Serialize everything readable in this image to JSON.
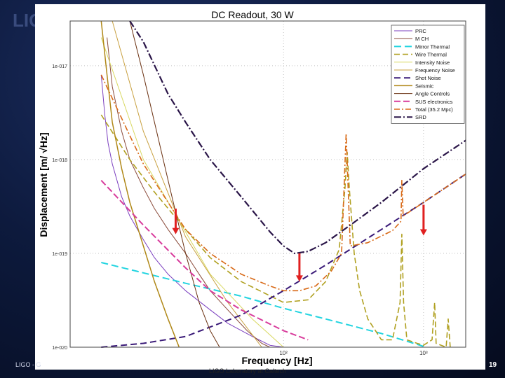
{
  "slide": {
    "footer_left": "LIGO - G",
    "footer_center": "LIGO Laboratory at Caltech",
    "page_number": "19",
    "bg_logo": "LIG"
  },
  "chart_data": {
    "type": "line",
    "title": "DC Readout, 30 W",
    "xlabel": "Frequency [Hz]",
    "ylabel": "Displacement [m/ √Hz]",
    "x_scale": "log",
    "y_scale": "log",
    "xlim": [
      3,
      2000
    ],
    "ylim": [
      1e-20,
      3e-17
    ],
    "grid": true,
    "legend_position": "top-right",
    "x_ticks": [
      {
        "value": 100,
        "label": "10²"
      },
      {
        "value": 1000,
        "label": "10³"
      }
    ],
    "y_ticks": [
      {
        "value": 1e-17,
        "label": "1e-017"
      },
      {
        "value": 1e-18,
        "label": "1e-018"
      },
      {
        "value": 1e-19,
        "label": "1e-019"
      },
      {
        "value": 1e-20,
        "label": "1e-020"
      }
    ],
    "series": [
      {
        "name": "PRC",
        "color": "#7b3fbf",
        "dash": "",
        "width": 1,
        "points": [
          [
            5,
            8e-18
          ],
          [
            5.3,
            3e-18
          ],
          [
            5.6,
            1.5e-18
          ],
          [
            6,
            9e-19
          ],
          [
            7,
            4e-19
          ],
          [
            8,
            2.5e-19
          ],
          [
            10,
            1.4e-19
          ],
          [
            12,
            9e-20
          ],
          [
            15,
            6e-20
          ],
          [
            20,
            4e-20
          ],
          [
            30,
            2.5e-20
          ],
          [
            40,
            1.8e-20
          ],
          [
            60,
            1.3e-20
          ],
          [
            80,
            1.05e-20
          ],
          [
            100,
            1e-20
          ]
        ]
      },
      {
        "name": "M CH",
        "color": "#8a4a3a",
        "dash": "",
        "width": 1,
        "points": [
          [
            5.5,
            2e-17
          ],
          [
            6,
            6e-18
          ],
          [
            7,
            2e-18
          ],
          [
            8,
            1e-18
          ],
          [
            10,
            5e-19
          ],
          [
            12,
            3e-19
          ],
          [
            15,
            1.8e-19
          ],
          [
            20,
            1e-19
          ],
          [
            25,
            6e-20
          ],
          [
            30,
            4e-20
          ],
          [
            40,
            2.5e-20
          ],
          [
            55,
            1.5e-20
          ],
          [
            70,
            1.1e-20
          ],
          [
            80,
            1e-20
          ]
        ]
      },
      {
        "name": "Mirror Thermal",
        "color": "#22d4e0",
        "dash": "10 5",
        "width": 2,
        "points": [
          [
            5,
            8e-20
          ],
          [
            10,
            6.2e-20
          ],
          [
            20,
            4.8e-20
          ],
          [
            50,
            3.5e-20
          ],
          [
            100,
            2.6e-20
          ],
          [
            200,
            2e-20
          ],
          [
            500,
            1.4e-20
          ],
          [
            1000,
            1.02e-20
          ]
        ]
      },
      {
        "name": "Wire Thermal",
        "color": "#b0a020",
        "dash": "8 4",
        "width": 1.6,
        "points": [
          [
            5,
            3e-18
          ],
          [
            8,
            1e-18
          ],
          [
            12,
            4.5e-19
          ],
          [
            20,
            1.8e-19
          ],
          [
            30,
            9e-20
          ],
          [
            50,
            5e-20
          ],
          [
            100,
            3e-20
          ],
          [
            150,
            3.2e-20
          ],
          [
            200,
            5e-20
          ],
          [
            250,
            1.1e-19
          ],
          [
            275,
            5e-19
          ],
          [
            285,
            1.2e-18
          ],
          [
            295,
            5e-19
          ],
          [
            320,
            1e-19
          ],
          [
            350,
            4e-20
          ],
          [
            400,
            2e-20
          ],
          [
            500,
            1.2e-20
          ],
          [
            600,
            1.2e-20
          ],
          [
            680,
            3e-20
          ],
          [
            700,
            1.6e-19
          ],
          [
            720,
            3e-20
          ],
          [
            760,
            1.2e-20
          ],
          [
            900,
            1.1e-20
          ],
          [
            1000,
            1.05e-20
          ],
          [
            1150,
            1.2e-20
          ],
          [
            1200,
            3e-20
          ],
          [
            1230,
            1.1e-20
          ],
          [
            1450,
            1e-20
          ],
          [
            1500,
            2e-20
          ],
          [
            1550,
            1e-20
          ]
        ]
      },
      {
        "name": "Intensity Noise",
        "color": "#d8d860",
        "dash": "",
        "width": 1,
        "points": [
          [
            5,
            2e-17
          ],
          [
            10,
            1e-18
          ],
          [
            30,
            6e-20
          ],
          [
            60,
            2e-20
          ],
          [
            100,
            1e-20
          ]
        ]
      },
      {
        "name": "Frequency Noise",
        "color": "#c8a040",
        "dash": "",
        "width": 1,
        "points": [
          [
            6,
            3e-17
          ],
          [
            10,
            2e-18
          ],
          [
            20,
            1.5e-19
          ],
          [
            40,
            3e-20
          ],
          [
            70,
            1e-20
          ]
        ]
      },
      {
        "name": "Shot Noise",
        "color": "#3a1a78",
        "dash": "9 5",
        "width": 2,
        "points": [
          [
            5,
            1e-20
          ],
          [
            10,
            1.1e-20
          ],
          [
            20,
            1.3e-20
          ],
          [
            50,
            2.2e-20
          ],
          [
            100,
            4e-20
          ],
          [
            200,
            7.5e-20
          ],
          [
            500,
            1.8e-19
          ],
          [
            1000,
            3.5e-19
          ],
          [
            2000,
            7e-19
          ]
        ]
      },
      {
        "name": "Seismic",
        "color": "#b08818",
        "dash": "",
        "width": 1.5,
        "points": [
          [
            5,
            3e-17
          ],
          [
            5.5,
            8e-18
          ],
          [
            6,
            2.5e-18
          ],
          [
            7,
            8e-19
          ],
          [
            8,
            3.5e-19
          ],
          [
            10,
            1.2e-19
          ],
          [
            12,
            5e-20
          ],
          [
            15,
            2e-20
          ],
          [
            18,
            1e-20
          ]
        ]
      },
      {
        "name": "Angle Controls",
        "color": "#6a3010",
        "dash": "",
        "width": 1,
        "points": [
          [
            8,
            3e-17
          ],
          [
            10,
            8e-18
          ],
          [
            13,
            1.5e-18
          ],
          [
            16,
            4e-19
          ],
          [
            20,
            1e-19
          ],
          [
            25,
            3e-20
          ],
          [
            30,
            1.5e-20
          ],
          [
            35,
            1e-20
          ]
        ]
      },
      {
        "name": "SUS electronics",
        "color": "#d83c9c",
        "dash": "9 4",
        "width": 2,
        "points": [
          [
            5,
            6e-19
          ],
          [
            10,
            2e-19
          ],
          [
            20,
            7e-20
          ],
          [
            30,
            4e-20
          ],
          [
            50,
            2.5e-20
          ],
          [
            100,
            1.5e-20
          ],
          [
            150,
            1.2e-20
          ]
        ]
      },
      {
        "name": "Total (35.2 Mpc)",
        "color": "#d86a18",
        "dash": "8 3 2 3",
        "width": 1.6,
        "points": [
          [
            5,
            8e-18
          ],
          [
            8,
            1.8e-18
          ],
          [
            10,
            9e-19
          ],
          [
            15,
            3.5e-19
          ],
          [
            20,
            1.8e-19
          ],
          [
            30,
            1e-19
          ],
          [
            50,
            6e-20
          ],
          [
            80,
            4.5e-20
          ],
          [
            100,
            4e-20
          ],
          [
            130,
            4e-20
          ],
          [
            170,
            4.5e-20
          ],
          [
            220,
            6.5e-20
          ],
          [
            260,
            1e-19
          ],
          [
            280,
            1.9e-18
          ],
          [
            300,
            1.2e-19
          ],
          [
            400,
            1.3e-19
          ],
          [
            600,
            1.75e-19
          ],
          [
            690,
            2.2e-19
          ],
          [
            700,
            6e-19
          ],
          [
            715,
            2.5e-19
          ],
          [
            1000,
            3.5e-19
          ],
          [
            2000,
            7e-19
          ]
        ]
      },
      {
        "name": "SRD",
        "color": "#2a1548",
        "dash": "10 3 2 3",
        "width": 2.2,
        "points": [
          [
            8,
            3e-17
          ],
          [
            10,
            1.8e-17
          ],
          [
            15,
            5e-18
          ],
          [
            20,
            2.5e-18
          ],
          [
            30,
            1e-18
          ],
          [
            50,
            4e-19
          ],
          [
            80,
            1.7e-19
          ],
          [
            100,
            1.2e-19
          ],
          [
            120,
            1e-19
          ],
          [
            150,
            1.05e-19
          ],
          [
            200,
            1.3e-19
          ],
          [
            300,
            2e-19
          ],
          [
            500,
            3.5e-19
          ],
          [
            1000,
            8e-19
          ],
          [
            2000,
            1.6e-18
          ]
        ]
      }
    ],
    "annotation_arrows": [
      {
        "x": 17,
        "y_from": 3e-19,
        "y_to": 1.6e-19,
        "color": "#e02020"
      },
      {
        "x": 130,
        "y_from": 1e-19,
        "y_to": 5e-20,
        "color": "#e02020"
      },
      {
        "x": 1000,
        "y_from": 3.3e-19,
        "y_to": 1.55e-19,
        "color": "#e02020"
      }
    ]
  }
}
